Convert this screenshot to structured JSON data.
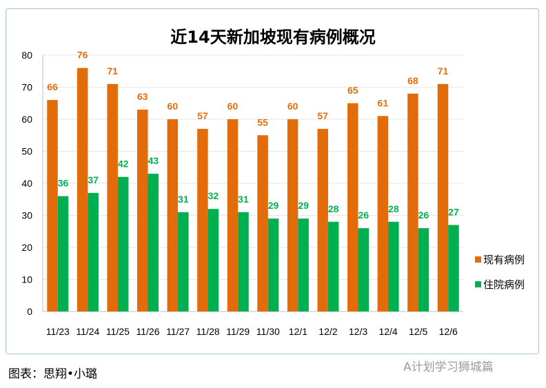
{
  "chart_data": {
    "type": "bar",
    "title": "近14天新加坡现有病例概况",
    "categories": [
      "11/23",
      "11/24",
      "11/25",
      "11/26",
      "11/27",
      "11/28",
      "11/29",
      "11/30",
      "12/1",
      "12/2",
      "12/3",
      "12/4",
      "12/5",
      "12/6"
    ],
    "series": [
      {
        "name": "现有病例",
        "color": "#e36c0a",
        "values": [
          66,
          76,
          71,
          63,
          60,
          57,
          60,
          55,
          60,
          57,
          65,
          61,
          68,
          71
        ]
      },
      {
        "name": "住院病例",
        "color": "#00b050",
        "values": [
          36,
          37,
          42,
          43,
          31,
          32,
          31,
          29,
          29,
          28,
          26,
          28,
          26,
          27
        ]
      }
    ],
    "ylim": [
      0,
      80
    ],
    "yticks": [
      0,
      10,
      20,
      30,
      40,
      50,
      60,
      70,
      80
    ],
    "grid": true,
    "legend": "right"
  },
  "footer": "图表：思翔•小璐",
  "watermark": "A计划学习狮城篇"
}
